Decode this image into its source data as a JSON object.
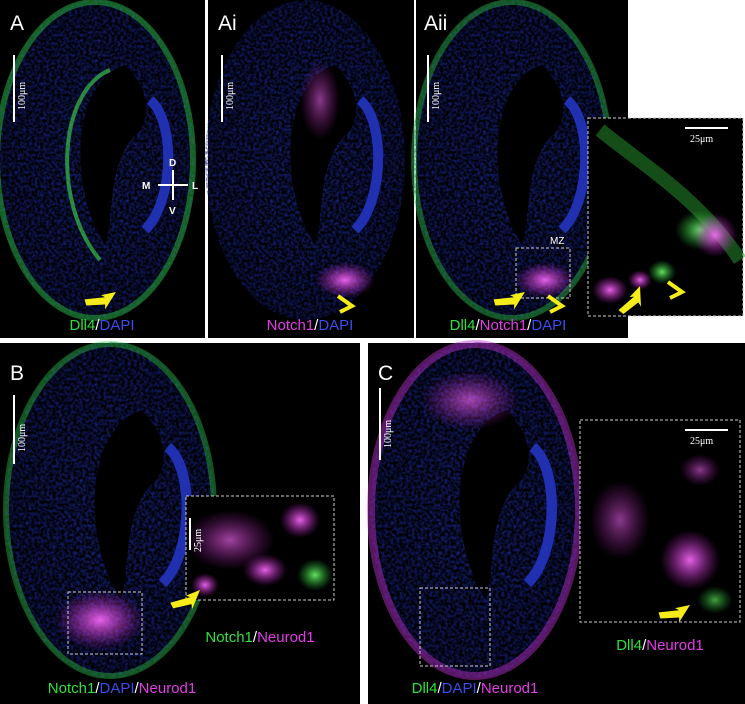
{
  "panels": [
    {
      "label": "A",
      "scale_bar": "100μm",
      "caption": [
        "Dll4",
        "/",
        "DAPI"
      ],
      "axes": [
        "D",
        "V",
        "M",
        "L"
      ]
    },
    {
      "label": "Ai",
      "scale_bar": "100μm",
      "caption": [
        "Notch1",
        "/",
        "DAPI"
      ]
    },
    {
      "label": "Aii",
      "scale_bar": "100μm",
      "caption": [
        "Dll4",
        "/",
        "Notch1",
        "/",
        "DAPI"
      ],
      "region": "MZ",
      "inset_scale_bar": "25μm"
    },
    {
      "label": "B",
      "scale_bar": "100μm",
      "caption": [
        "Notch1",
        "/",
        "DAPI",
        "/",
        "Neurod1"
      ],
      "inset_scale_bar": "25μm",
      "inset_caption": [
        "Notch1",
        "/",
        "Neurod1"
      ]
    },
    {
      "label": "C",
      "scale_bar": "100μm",
      "caption": [
        "Dll4",
        "/",
        "DAPI",
        "/",
        "Neurod1"
      ],
      "inset_scale_bar": "25μm",
      "inset_caption": [
        "Dll4",
        "/",
        "Neurod1"
      ]
    }
  ]
}
